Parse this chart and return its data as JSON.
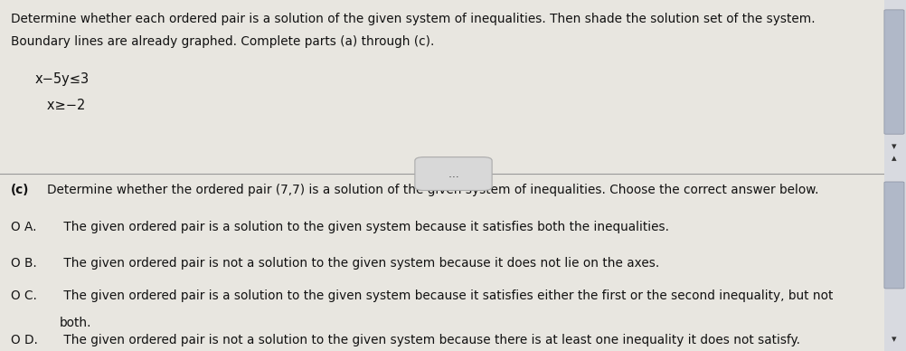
{
  "bg_color_top": "#e8e6e0",
  "bg_color_bottom": "#e8e6e0",
  "scrollbar_color": "#b0b8c8",
  "scrollbar_bg": "#d8dae0",
  "title_line1": "Determine whether each ordered pair is a solution of the given system of inequalities. Then shade the solution set of the system.",
  "title_line2": "Boundary lines are already graphed. Complete parts (a) through (c).",
  "ineq_line1": "x−5y≤3",
  "ineq_line2": "   x≥−2",
  "divider_label": "…",
  "part_c_label": "(c)",
  "part_c_text": "Determine whether the ordered pair (7,7) is a solution of the given system of inequalities. Choose the correct answer below.",
  "option_A_bullet": "O A.",
  "option_A_text": " The given ordered pair is a solution to the given system because it satisfies both the inequalities.",
  "option_B_bullet": "O B.",
  "option_B_text": " The given ordered pair is not a solution to the given system because it does not lie on the axes.",
  "option_C_bullet": "O C.",
  "option_C_text_line1": " The given ordered pair is a solution to the given system because it satisfies either the first or the second inequality, but not",
  "option_C_text_line2": "both.",
  "option_D_bullet": "O D.",
  "option_D_text": " The given ordered pair is not a solution to the given system because there is at least one inequality it does not satisfy.",
  "text_color": "#111111",
  "divider_color": "#999999",
  "title_fontsize": 9.8,
  "body_fontsize": 9.8,
  "ineq_fontsize": 10.5
}
